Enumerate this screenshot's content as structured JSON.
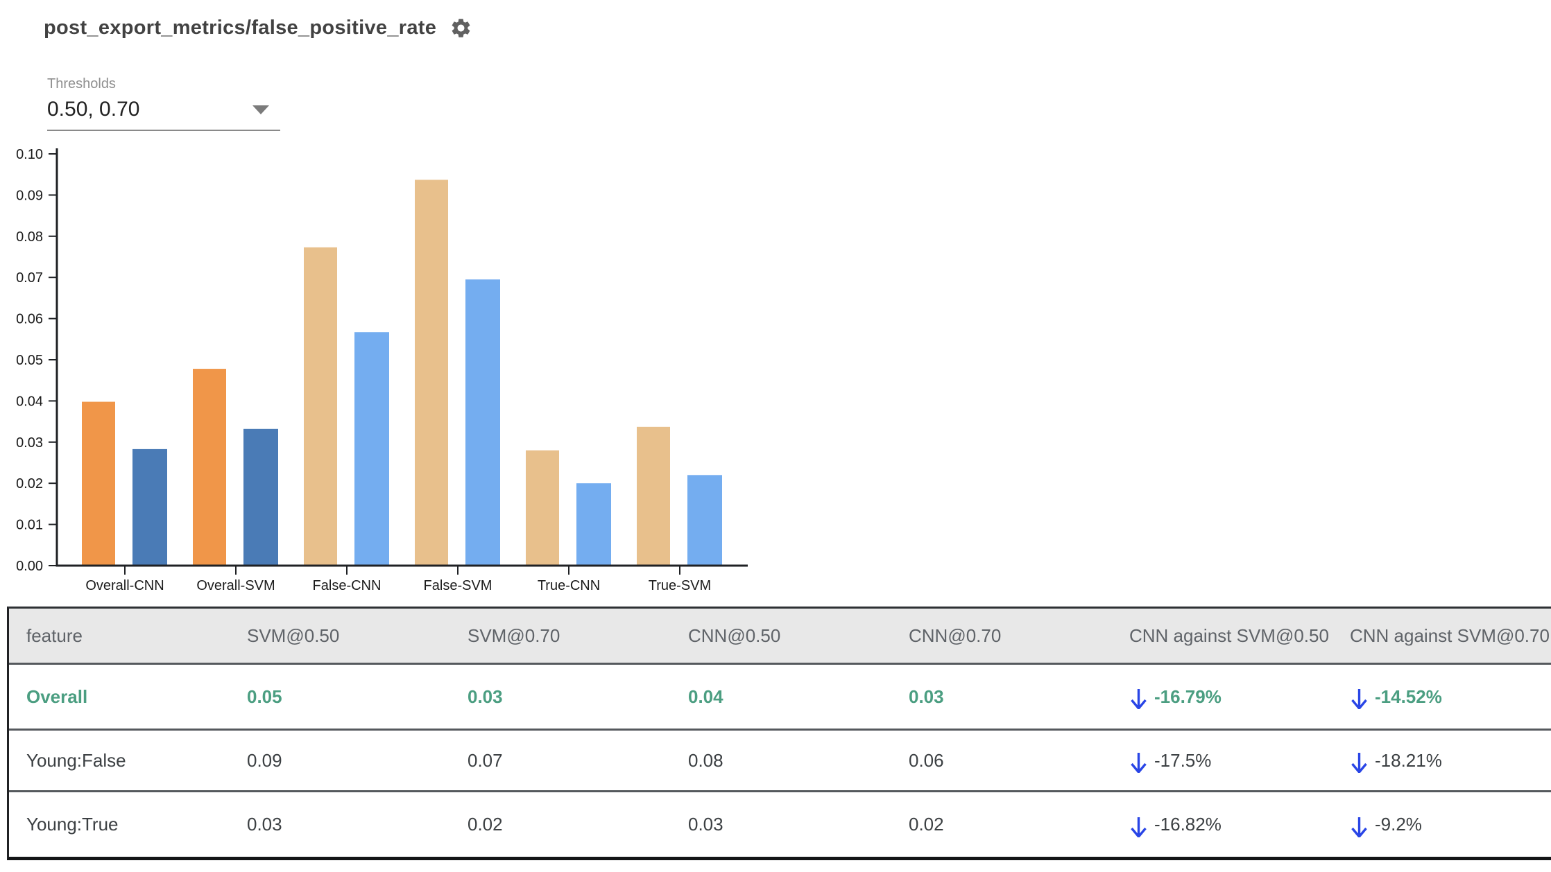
{
  "header": {
    "title": "post_export_metrics/false_positive_rate",
    "settings_icon": "gear-icon"
  },
  "thresholds": {
    "label": "Thresholds",
    "value": "0.50, 0.70",
    "dropdown_icon": "chevron-down-icon"
  },
  "chart_data": {
    "type": "bar",
    "title": "",
    "xlabel": "",
    "ylabel": "",
    "categories": [
      "Overall-CNN",
      "Overall-SVM",
      "False-CNN",
      "False-SVM",
      "True-CNN",
      "True-SVM"
    ],
    "series": [
      {
        "name": "threshold 0.50",
        "values": [
          0.0398,
          0.0478,
          0.0773,
          0.0937,
          0.028,
          0.0337
        ],
        "colors": [
          "#f09649",
          "#f09649",
          "#e8c08c",
          "#e8c08c",
          "#e8c08c",
          "#e8c08c"
        ]
      },
      {
        "name": "threshold 0.70",
        "values": [
          0.0283,
          0.0332,
          0.0567,
          0.0695,
          0.02,
          0.022
        ],
        "colors": [
          "#4a7bb6",
          "#4a7bb6",
          "#74adf0",
          "#74adf0",
          "#74adf0",
          "#74adf0"
        ]
      }
    ],
    "ylim": [
      0,
      0.1
    ],
    "ytick_step": 0.01,
    "grid": false,
    "legend": "none"
  },
  "table": {
    "columns": [
      "feature",
      "SVM@0.50",
      "SVM@0.70",
      "CNN@0.50",
      "CNN@0.70",
      "CNN against SVM@0.50",
      "CNN against SVM@0.70"
    ],
    "rows": [
      {
        "feature": "Overall",
        "svm050": "0.05",
        "svm070": "0.03",
        "cnn050": "0.04",
        "cnn070": "0.03",
        "delta050": "-16.79%",
        "delta070": "-14.52%"
      },
      {
        "feature": "Young:False",
        "svm050": "0.09",
        "svm070": "0.07",
        "cnn050": "0.08",
        "cnn070": "0.06",
        "delta050": "-17.5%",
        "delta070": "-18.21%"
      },
      {
        "feature": "Young:True",
        "svm050": "0.03",
        "svm070": "0.02",
        "cnn050": "0.03",
        "cnn070": "0.02",
        "delta050": "-16.82%",
        "delta070": "-9.2%"
      }
    ],
    "delta_icon": "down-arrow-icon"
  },
  "colors": {
    "accent_green": "#4b9e81",
    "arrow_blue": "#2945e6",
    "header_bg": "#e8e8e8",
    "header_text": "#5f6368",
    "row_text": "#3c4043",
    "title_text": "#424242",
    "bar_overall_050": "#f09649",
    "bar_overall_070": "#4a7bb6",
    "bar_slice_050": "#e8c08c",
    "bar_slice_070": "#74adf0"
  }
}
